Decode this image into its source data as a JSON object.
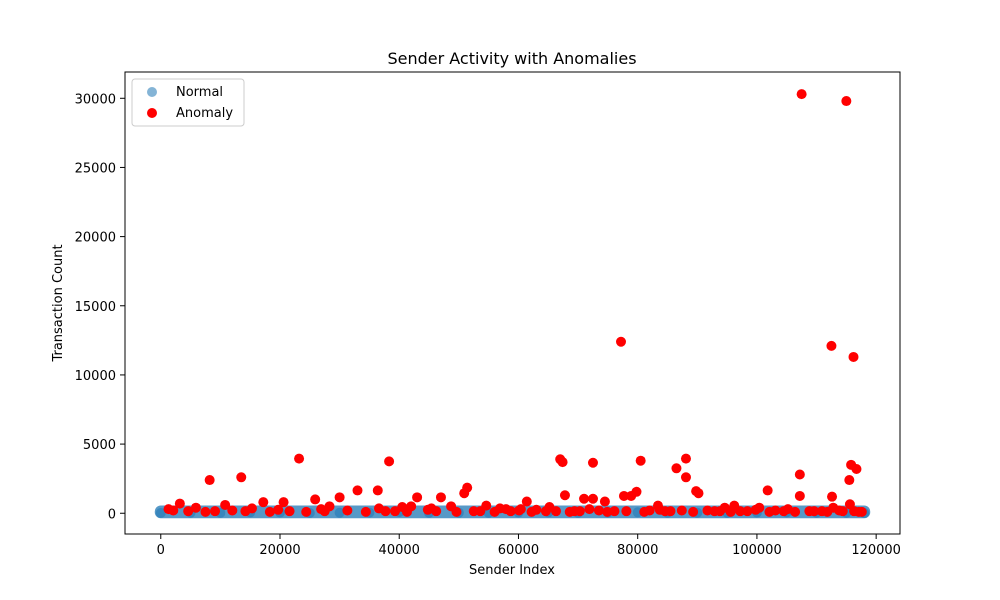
{
  "chart_data": {
    "type": "scatter",
    "title": "Sender Activity with Anomalies",
    "xlabel": "Sender Index",
    "ylabel": "Transaction Count",
    "xlim": [
      -6000,
      124000
    ],
    "ylim": [
      -1500,
      31900
    ],
    "xticks": [
      0,
      20000,
      40000,
      60000,
      80000,
      100000,
      120000
    ],
    "xtick_labels": [
      "0",
      "20000",
      "40000",
      "60000",
      "80000",
      "100000",
      "120000"
    ],
    "yticks": [
      0,
      5000,
      10000,
      15000,
      20000,
      25000,
      30000
    ],
    "ytick_labels": [
      "0",
      "5000",
      "10000",
      "15000",
      "20000",
      "25000",
      "30000"
    ],
    "grid": false,
    "legend": "upper-left",
    "normal_range": {
      "x_min": 0,
      "x_max": 118000,
      "y_min": 0,
      "y_max": 200
    },
    "series": [
      {
        "name": "Normal",
        "color": "#1f77b4",
        "alpha": 0.55,
        "x": [
          0,
          5000,
          10000,
          15000,
          20000,
          25000,
          30000,
          35000,
          40000,
          45000,
          50000,
          55000,
          60000,
          65000,
          70000,
          75000,
          80000,
          85000,
          90000,
          95000,
          100000,
          105000,
          110000,
          115000,
          118000
        ],
        "y": [
          20,
          40,
          30,
          60,
          50,
          20,
          35,
          45,
          80,
          30,
          40,
          25,
          50,
          60,
          30,
          45,
          70,
          35,
          40,
          30,
          50,
          60,
          40,
          30,
          20
        ]
      },
      {
        "name": "Anomaly",
        "color": "#ff0000",
        "x": [
          107500,
          115000,
          77200,
          112500,
          116200,
          23200,
          38300,
          67000,
          67400,
          72500,
          80500,
          88100,
          115800,
          86500,
          116700,
          13500,
          8200,
          107200,
          88100,
          115500,
          51400,
          89800,
          90200,
          101800,
          36400,
          33000,
          50900,
          79800,
          67800,
          77700,
          78900,
          112600,
          107200,
          47000,
          43000,
          71000,
          72500,
          30000,
          25900,
          74500,
          61400,
          17200,
          20600,
          3200,
          48700,
          54600,
          10800,
          115600,
          1300,
          5900,
          28300,
          96200,
          83400,
          42000,
          65200,
          100400,
          94600,
          56900,
          36600,
          40500,
          112800,
          15300,
          26900,
          57900,
          45400,
          60400,
          19700,
          63000,
          71900,
          99800,
          83700,
          105200,
          82000,
          91700,
          44800,
          12000,
          2100,
          9100,
          31300,
          39300,
          52500,
          60100,
          64600,
          69400,
          73500,
          76100,
          84600,
          87400,
          92900,
          97200,
          103100,
          108800,
          110900,
          113800,
          116300,
          117600,
          4600,
          7500,
          14200,
          18300,
          21600,
          24400,
          27500,
          34400,
          37700,
          41300,
          46200,
          49600,
          53600,
          56000,
          58700,
          62200,
          66300,
          68600,
          70300,
          74900,
          78100,
          81100,
          85500,
          89300,
          93800,
          95600,
          98400,
          102100,
          104500,
          106400,
          109600,
          111800,
          114400,
          117100
        ],
        "y": [
          30300,
          29800,
          12400,
          12100,
          11300,
          3950,
          3750,
          3900,
          3700,
          3650,
          3800,
          3950,
          3500,
          3250,
          3200,
          2600,
          2400,
          2800,
          2600,
          2400,
          1850,
          1600,
          1450,
          1650,
          1650,
          1650,
          1450,
          1550,
          1300,
          1250,
          1250,
          1200,
          1250,
          1150,
          1150,
          1050,
          1050,
          1150,
          1000,
          850,
          850,
          800,
          800,
          700,
          500,
          550,
          600,
          650,
          300,
          400,
          500,
          550,
          550,
          500,
          450,
          400,
          400,
          350,
          350,
          450,
          400,
          350,
          300,
          300,
          350,
          300,
          250,
          250,
          300,
          250,
          250,
          300,
          200,
          200,
          250,
          200,
          200,
          150,
          200,
          150,
          150,
          200,
          150,
          150,
          200,
          150,
          150,
          200,
          150,
          150,
          200,
          150,
          150,
          200,
          150,
          100,
          150,
          100,
          150,
          100,
          150,
          100,
          150,
          100,
          150,
          100,
          150,
          100,
          150,
          100,
          150,
          100,
          150,
          100,
          150,
          100,
          150,
          100,
          150,
          100,
          150,
          100,
          150,
          100,
          150,
          100,
          150,
          100,
          150,
          100
        ]
      }
    ]
  }
}
